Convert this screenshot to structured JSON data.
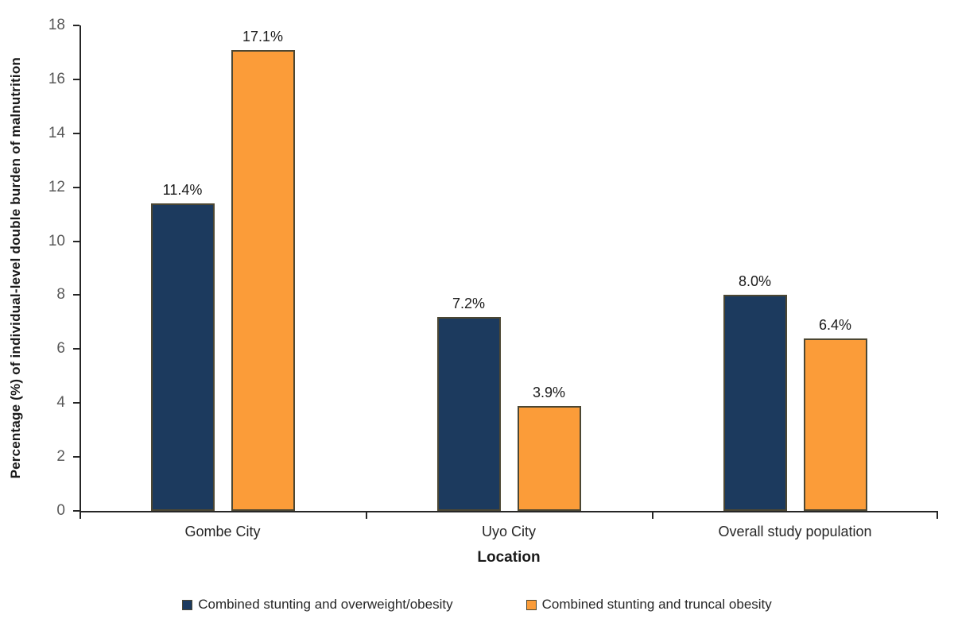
{
  "chart_data": {
    "type": "bar",
    "title": "",
    "xlabel": "Location",
    "ylabel": "Percentage (%) of individual-level double burden of malnutrition",
    "categories": [
      "Gombe City",
      "Uyo City",
      "Overall study population"
    ],
    "series": [
      {
        "name": "Combined stunting and overweight/obesity",
        "color": "#1c3a5e",
        "values": [
          11.4,
          7.2,
          8.0
        ],
        "data_labels": [
          "11.4%",
          "7.2%",
          "8.0%"
        ]
      },
      {
        "name": "Combined stunting and truncal obesity",
        "color": "#fb9c39",
        "values": [
          17.1,
          3.9,
          6.4
        ],
        "data_labels": [
          "17.1%",
          "3.9%",
          "6.4%"
        ]
      }
    ],
    "ylim": [
      0,
      18
    ],
    "ytick_step": 2,
    "grid": false,
    "legend_position": "bottom",
    "colors": {
      "axis": "#262626",
      "bar_outline": "#4c4733",
      "y_tick_label": "#595959",
      "data_label": "#1a1a1a",
      "background": "#ffffff"
    }
  }
}
